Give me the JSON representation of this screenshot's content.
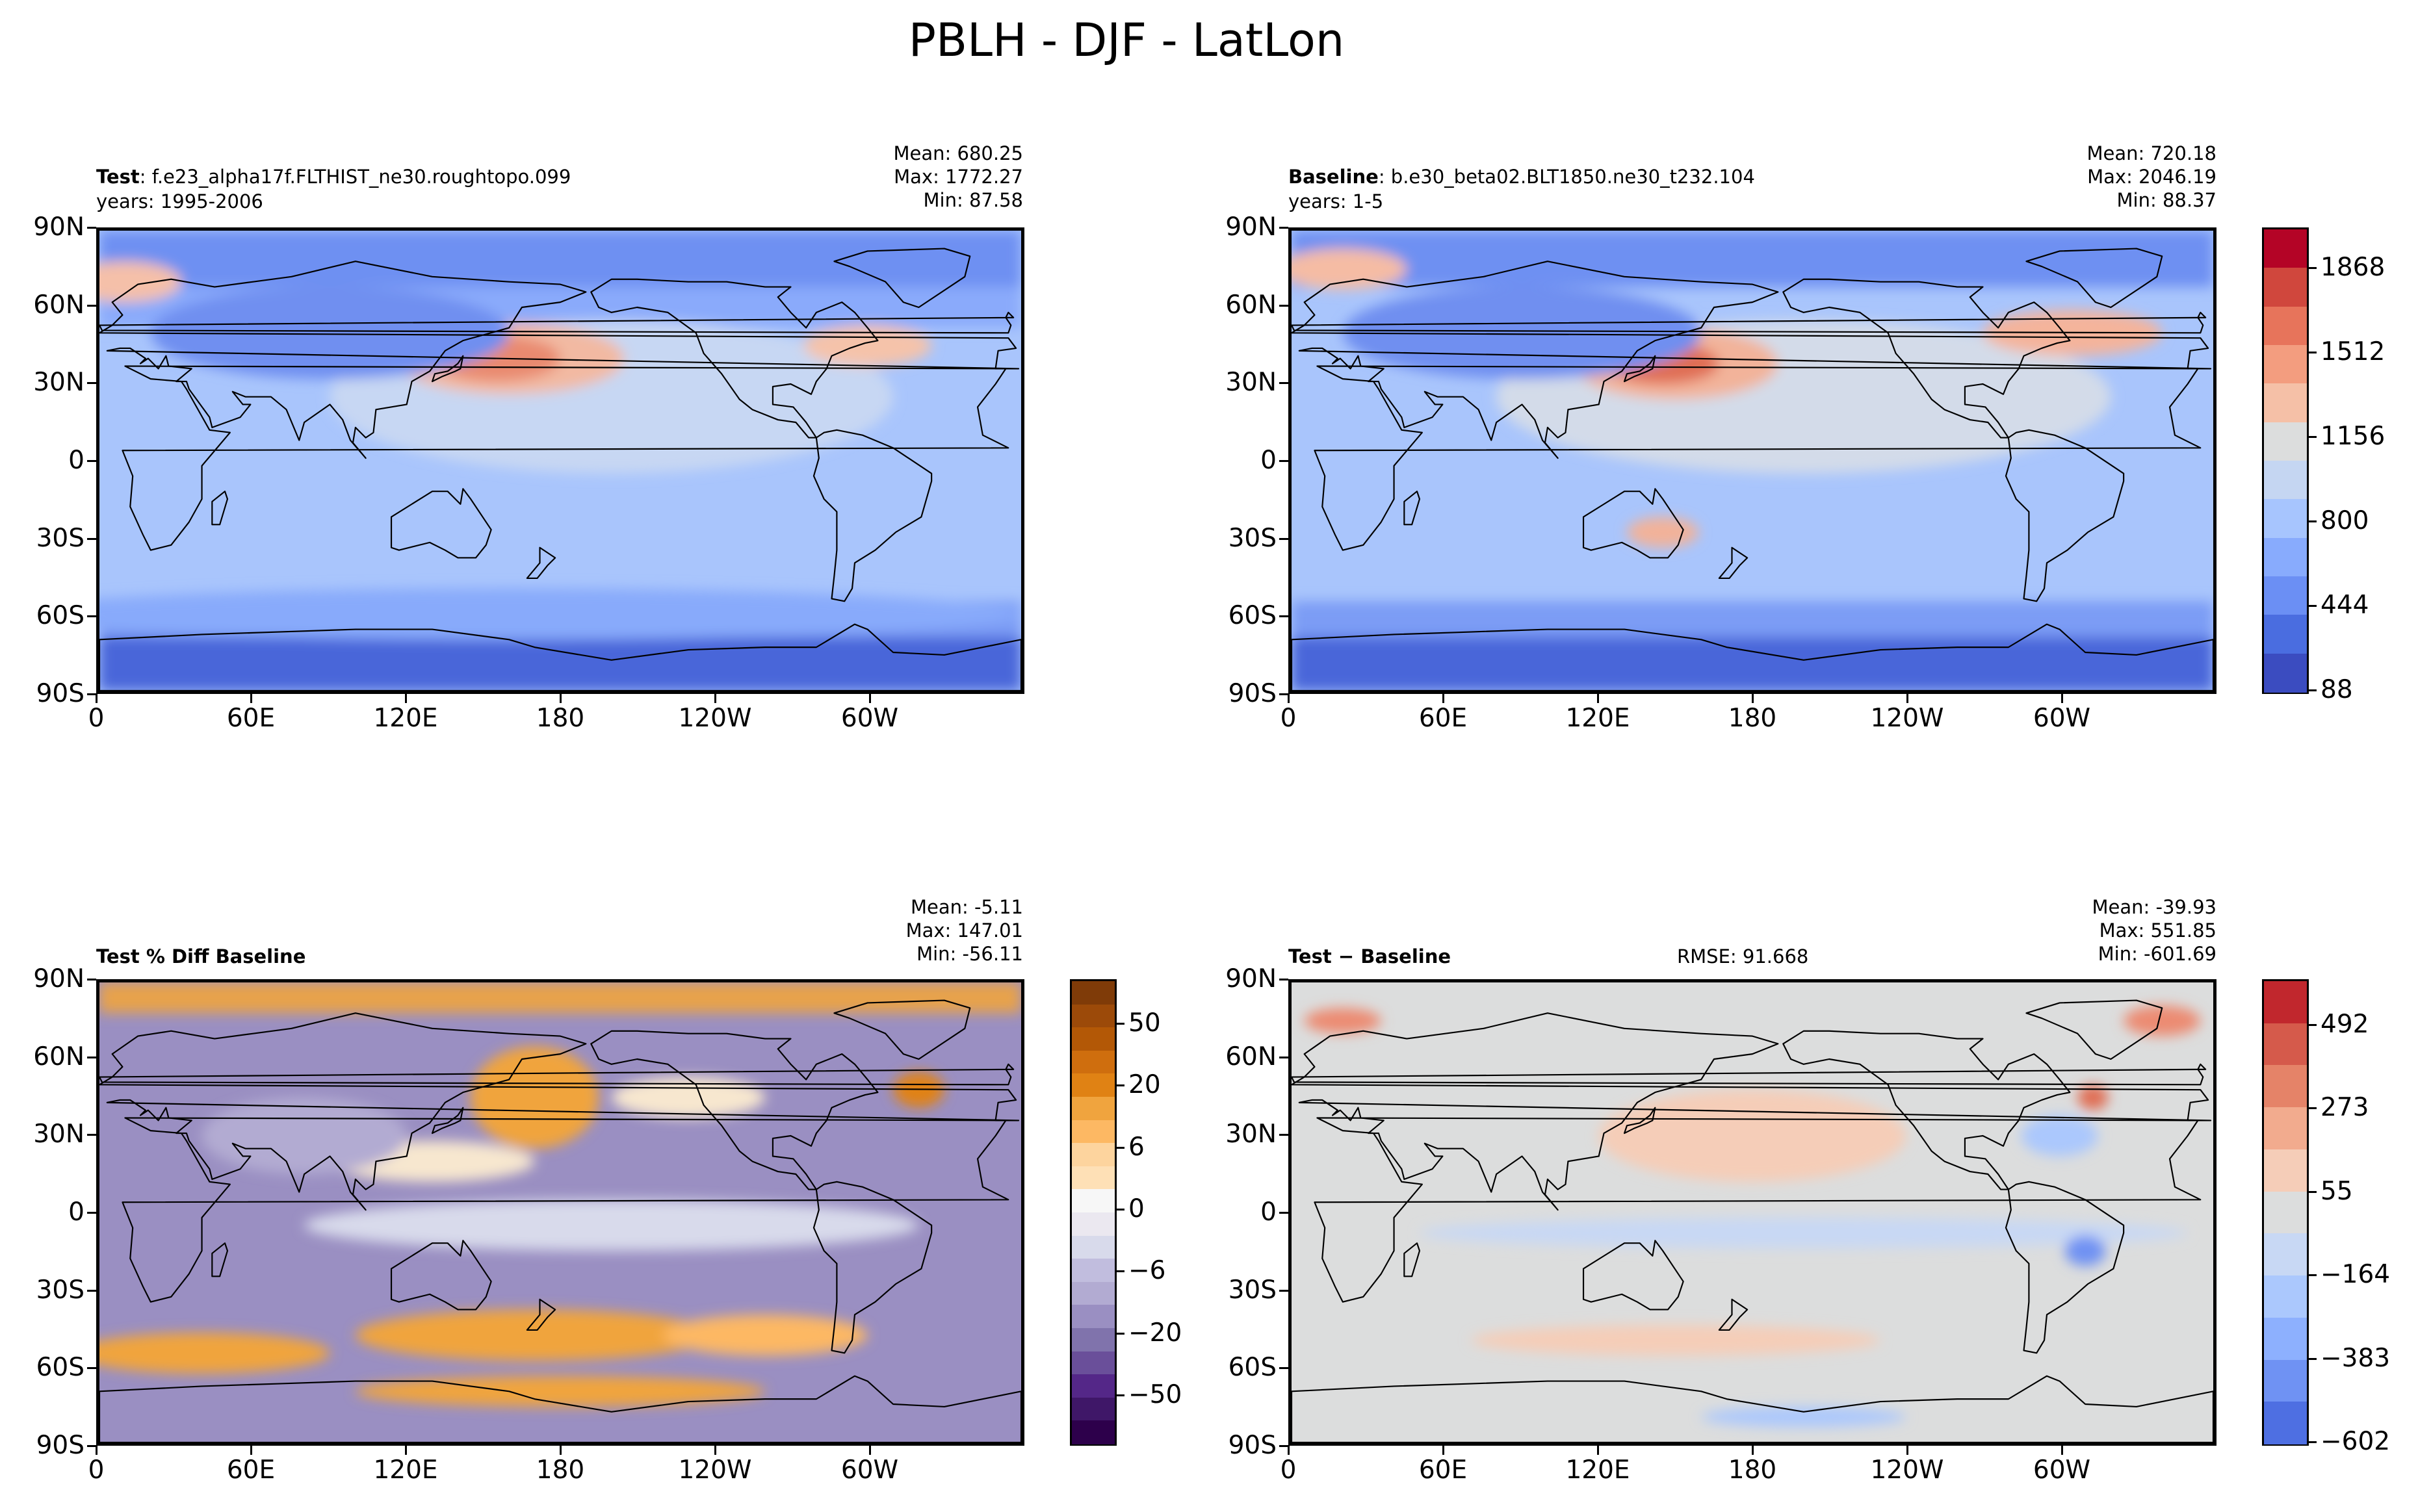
{
  "suptitle": "PBLH - DJF - LatLon",
  "colors": {
    "land_line": "#000000"
  },
  "chart_data": [
    {
      "type": "heatmap",
      "panel": "test",
      "title_bold": "Test",
      "title_rest": ": f.e23_alpha17f.FLTHIST_ne30.roughtopo.099",
      "years": "years: 1995-2006",
      "stats": {
        "mean": "Mean: 680.25",
        "max": "Max: 1772.27",
        "min": "Min: 87.58"
      },
      "y_ticks": [
        "90N",
        "60N",
        "30N",
        "0",
        "30S",
        "60S",
        "90S"
      ],
      "x_ticks": [
        "0",
        "60E",
        "120E",
        "180",
        "120W",
        "60W"
      ],
      "xlim": [
        0,
        360
      ],
      "ylim": [
        -90,
        90
      ],
      "colormap": "coolwarm"
    },
    {
      "type": "heatmap",
      "panel": "baseline",
      "title_bold": "Baseline",
      "title_rest": ": b.e30_beta02.BLT1850.ne30_t232.104",
      "years": "years: 1-5",
      "stats": {
        "mean": "Mean: 720.18",
        "max": "Max: 2046.19",
        "min": "Min: 88.37"
      },
      "y_ticks": [
        "90N",
        "60N",
        "30N",
        "0",
        "30S",
        "60S",
        "90S"
      ],
      "x_ticks": [
        "0",
        "60E",
        "120E",
        "180",
        "120W",
        "60W"
      ],
      "xlim": [
        0,
        360
      ],
      "ylim": [
        -90,
        90
      ],
      "colormap": "coolwarm",
      "colorbar": {
        "labels": [
          "1868",
          "1512",
          "1156",
          "800",
          "444",
          "88"
        ],
        "colors": [
          "#b40426",
          "#d0473d",
          "#e7745b",
          "#f39d7f",
          "#f5c0a7",
          "#dcdddd",
          "#c5d6f2",
          "#a7c5fe",
          "#88abfd",
          "#6b8ff4",
          "#4a6de0",
          "#3b4cc0"
        ]
      }
    },
    {
      "type": "heatmap",
      "panel": "pct_diff",
      "title_bold": "Test % Diff Baseline",
      "stats": {
        "mean": "Mean: -5.11",
        "max": "Max: 147.01",
        "min": "Min: -56.11"
      },
      "y_ticks": [
        "90N",
        "60N",
        "30N",
        "0",
        "30S",
        "60S",
        "90S"
      ],
      "x_ticks": [
        "0",
        "60E",
        "120E",
        "180",
        "120W",
        "60W"
      ],
      "xlim": [
        0,
        360
      ],
      "ylim": [
        -90,
        90
      ],
      "colormap": "PuOr_r",
      "colorbar": {
        "labels": [
          "50",
          "20",
          "6",
          "0",
          "−6",
          "−20",
          "−50"
        ],
        "colors": [
          "#7f3b08",
          "#9c4a09",
          "#b35806",
          "#cf6e0e",
          "#e08214",
          "#f0a43e",
          "#fdb863",
          "#fdd49e",
          "#fee0b6",
          "#f7f7f7",
          "#ebe8f0",
          "#d8daeb",
          "#c1bdde",
          "#b2abd2",
          "#9a8fc2",
          "#8073ac",
          "#6a4f9a",
          "#542788",
          "#3f1768",
          "#2d004b"
        ]
      }
    },
    {
      "type": "heatmap",
      "panel": "diff",
      "title_bold": "Test − Baseline",
      "rmse": "RMSE: 91.668",
      "stats": {
        "mean": "Mean: -39.93",
        "max": "Max: 551.85",
        "min": "Min: -601.69"
      },
      "y_ticks": [
        "90N",
        "60N",
        "30N",
        "0",
        "30S",
        "60S",
        "90S"
      ],
      "x_ticks": [
        "0",
        "60E",
        "120E",
        "180",
        "120W",
        "60W"
      ],
      "xlim": [
        0,
        360
      ],
      "ylim": [
        -90,
        90
      ],
      "colormap": "coolwarm",
      "colorbar": {
        "labels": [
          "492",
          "273",
          "55",
          "−164",
          "−383",
          "−602"
        ],
        "colors": [
          "#c1272d",
          "#d55a4b",
          "#e58368",
          "#f2ab8e",
          "#f5cdb8",
          "#dcdddd",
          "#c8d8f4",
          "#abc8fd",
          "#8db0fe",
          "#6f92f3",
          "#4e6fe2"
        ]
      }
    }
  ]
}
